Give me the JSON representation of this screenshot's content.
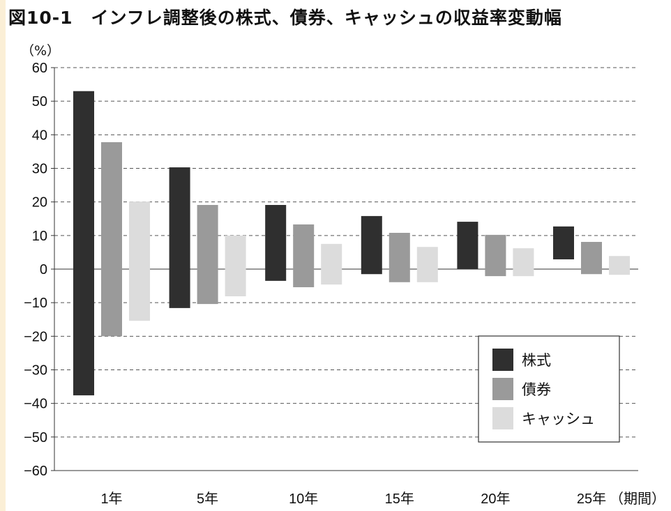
{
  "chart_data": {
    "type": "bar",
    "subtype": "floating-range",
    "title": "図10-1　インフレ調整後の株式、債券、キャッシュの収益率変動幅",
    "ylabel": "（%）",
    "xlabel": "（期間）",
    "ylim": [
      -60,
      60
    ],
    "yticks": [
      60,
      50,
      40,
      30,
      20,
      10,
      0,
      -10,
      -20,
      -30,
      -40,
      -50,
      -60
    ],
    "categories": [
      "1年",
      "5年",
      "10年",
      "15年",
      "20年",
      "25年"
    ],
    "grid": true,
    "legend_position": "bottom-right",
    "series": [
      {
        "name": "株式",
        "color": "#2f2f2f",
        "max": [
          53,
          30.3,
          19.1,
          15.8,
          14.1,
          12.7
        ],
        "min": [
          -37.6,
          -11.6,
          -3.5,
          -1.5,
          0,
          2.9
        ]
      },
      {
        "name": "債券",
        "color": "#9a9a9a",
        "max": [
          37.8,
          19.1,
          13.3,
          10.8,
          10.2,
          8.1
        ],
        "min": [
          -20,
          -10.4,
          -5.4,
          -3.9,
          -2.1,
          -1.5
        ]
      },
      {
        "name": "キャッシュ",
        "color": "#dcdcdc",
        "max": [
          20.1,
          10,
          7.5,
          6.6,
          6.2,
          3.9
        ],
        "min": [
          -15.4,
          -8.1,
          -4.6,
          -3.9,
          -2.1,
          -1.7
        ]
      }
    ]
  }
}
